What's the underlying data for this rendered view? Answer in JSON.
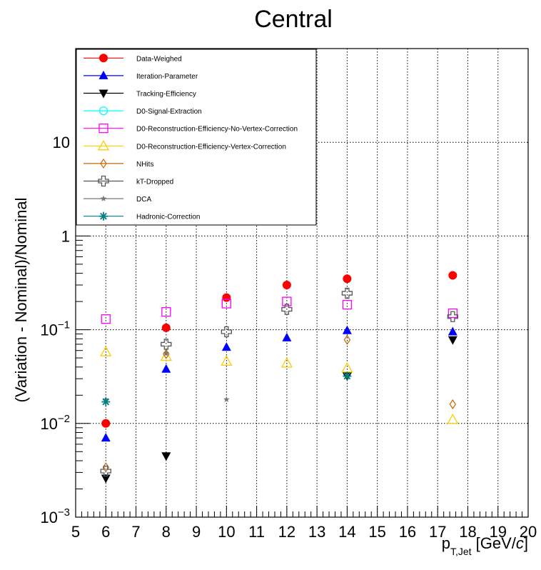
{
  "chart_data": {
    "type": "scatter",
    "title": "Central",
    "ylabel": "(Variation - Nominal)/Nominal",
    "xlabel": {
      "main": "p",
      "sub": "T,Jet",
      "unit_open": " [GeV/",
      "unit_c": "c",
      "unit_close": "]"
    },
    "xlim": [
      5,
      20
    ],
    "ylim": [
      0.001,
      100
    ],
    "yscale": "log",
    "grid": true,
    "legend_position": "top-left",
    "x_ticks": [
      5,
      6,
      7,
      8,
      9,
      10,
      11,
      12,
      13,
      14,
      15,
      16,
      17,
      18,
      19,
      20
    ],
    "y_tick_labels": [
      {
        "value": 0.001,
        "base": "10",
        "exp": "−3"
      },
      {
        "value": 0.01,
        "base": "10",
        "exp": "−2"
      },
      {
        "value": 0.1,
        "base": "10",
        "exp": "−1"
      },
      {
        "value": 1,
        "base": "1",
        "exp": ""
      },
      {
        "value": 10,
        "base": "10",
        "exp": ""
      }
    ],
    "series": [
      {
        "name": "Data-Weighed",
        "color": "#ff0000",
        "marker": "circle-filled",
        "x": [
          6,
          8,
          10,
          12,
          14,
          17.5
        ],
        "y": [
          0.01,
          0.105,
          0.22,
          0.3,
          0.35,
          0.38
        ]
      },
      {
        "name": "Iteration-Parameter",
        "color": "#0000ff",
        "marker": "triangle-up-filled",
        "x": [
          6,
          8,
          10,
          12,
          14,
          17.5
        ],
        "y": [
          0.007,
          0.038,
          0.065,
          0.082,
          0.098,
          0.095
        ]
      },
      {
        "name": "Tracking-Efficiency",
        "color": "#000000",
        "marker": "triangle-down-filled",
        "x": [
          6,
          8,
          14,
          17.5
        ],
        "y": [
          0.0026,
          0.0045,
          0.032,
          0.078
        ]
      },
      {
        "name": "D0-Signal-Extraction",
        "color": "#00ffff",
        "marker": "circle-open",
        "x": [],
        "y": []
      },
      {
        "name": "D0-Reconstruction-Efficiency-No-Vertex-Correction",
        "color": "#ff00ff",
        "marker": "square-open",
        "x": [
          6,
          8,
          10,
          12,
          14,
          17.5
        ],
        "y": [
          0.13,
          0.155,
          0.19,
          0.2,
          0.185,
          0.15
        ]
      },
      {
        "name": "D0-Reconstruction-Efficiency-Vertex-Correction",
        "color": "#ffcc00",
        "marker": "triangle-up-open",
        "x": [
          6,
          8,
          10,
          12,
          14,
          17.5
        ],
        "y": [
          0.058,
          0.052,
          0.046,
          0.044,
          0.039,
          0.011
        ]
      },
      {
        "name": "NHits",
        "color": "#cc6600",
        "marker": "diamond-open",
        "x": [
          6,
          8,
          14,
          17.5
        ],
        "y": [
          0.0034,
          0.055,
          0.078,
          0.016
        ]
      },
      {
        "name": "kT-Dropped",
        "color": "#555555",
        "marker": "cross-open",
        "x": [
          6,
          8,
          10,
          12,
          14,
          17.5
        ],
        "y": [
          0.0031,
          0.07,
          0.095,
          0.165,
          0.245,
          0.138
        ]
      },
      {
        "name": "DCA",
        "color": "#777777",
        "marker": "star",
        "x": [
          6,
          8,
          10,
          14
        ],
        "y": [
          0.018,
          0.056,
          0.018,
          0.033
        ]
      },
      {
        "name": "Hadronic-Correction",
        "color": "#008080",
        "marker": "asterisk",
        "x": [
          6,
          14
        ],
        "y": [
          0.017,
          0.032
        ]
      }
    ]
  }
}
